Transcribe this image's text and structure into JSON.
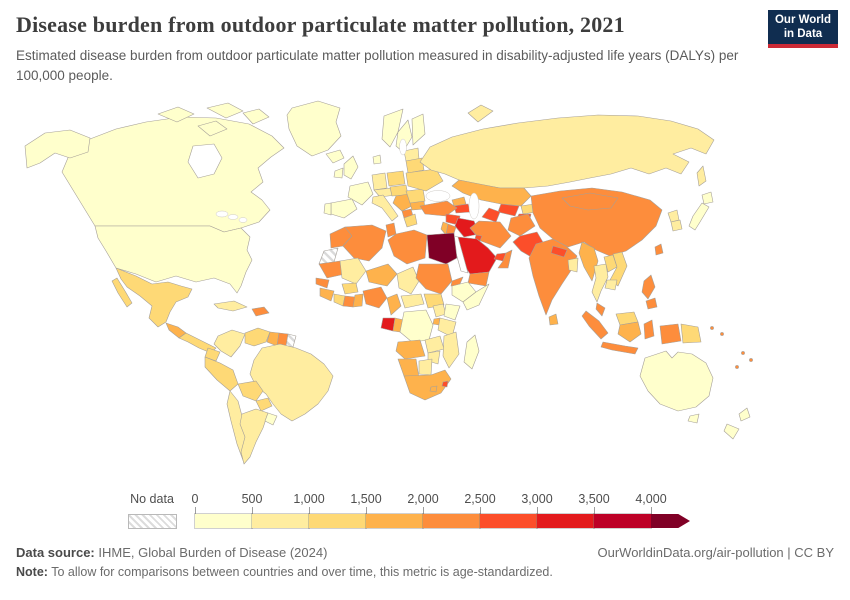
{
  "header": {
    "title": "Disease burden from outdoor particulate matter pollution, 2021",
    "subtitle": "Estimated disease burden from outdoor particulate matter pollution measured in disability-adjusted life years (DALYs) per 100,000 people.",
    "logo": {
      "line1": "Our World",
      "line2": "in Data",
      "bg_color": "#102d50",
      "accent_color": "#cc2a36"
    }
  },
  "legend": {
    "no_data_label": "No data",
    "tick_labels": [
      "0",
      "500",
      "1,000",
      "1,500",
      "2,000",
      "2,500",
      "3,000",
      "3,500",
      "4,000"
    ]
  },
  "footer": {
    "data_source_label": "Data source:",
    "data_source_value": " IHME, Global Burden of Disease (2024)",
    "citation": "OurWorldinData.org/air-pollution | CC BY",
    "note_label": "Note:",
    "note_value": " To allow for comparisons between countries and over time, this metric is age-standardized."
  },
  "chart_data": {
    "type": "choropleth",
    "title": "Disease burden from outdoor particulate matter pollution",
    "year": "2021",
    "unit": "DALYs per 100,000 people (age-standardized)",
    "bins": [
      {
        "range": "0-500",
        "color": "#ffffcc"
      },
      {
        "range": "500-1,000",
        "color": "#ffeda0"
      },
      {
        "range": "1,000-1,500",
        "color": "#fed976"
      },
      {
        "range": "1,500-2,000",
        "color": "#feb24c"
      },
      {
        "range": "2,000-2,500",
        "color": "#fd8d3c"
      },
      {
        "range": "2,500-3,000",
        "color": "#fc4e2a"
      },
      {
        "range": "3,000-3,500",
        "color": "#e31a1c"
      },
      {
        "range": "3,500-4,000",
        "color": "#bd0026"
      },
      {
        "range": "4,000+",
        "color": "#800026"
      }
    ],
    "no_data_key": "nd",
    "countries": {
      "canada": 0,
      "usa": 0,
      "greenland": 0,
      "mexico": 2,
      "guatemala": 3,
      "central-america": 2,
      "cuba": 1,
      "hispaniola": 4,
      "colombia": 1,
      "venezuela": 2,
      "guyana": 3,
      "suriname": 4,
      "french-guiana": "nd",
      "ecuador": 2,
      "peru": 2,
      "brazil": 1,
      "bolivia": 2,
      "paraguay": 2,
      "chile": 1,
      "argentina": 1,
      "uruguay": 0,
      "iceland": 0,
      "uk": 0,
      "ireland": 0,
      "norway": 0,
      "sweden": 0,
      "finland": 0,
      "denmark": 0,
      "baltics": 1,
      "belarus": 2,
      "poland": 2,
      "germany": 1,
      "france": 0,
      "spain": 0,
      "portugal": 0,
      "switzerland-austria": 1,
      "czech-hungary": 2,
      "italy": 1,
      "balkans": 3,
      "albania-macedonia": 4,
      "greece": 2,
      "bulgaria": 3,
      "romania": 2,
      "ukraine": 2,
      "russia": 1,
      "kazakhstan": 3,
      "uzbekistan": 5,
      "turkmenistan": 5,
      "kyrgyzstan": 2,
      "tajikistan": 5,
      "georgia": 3,
      "azerbaijan-armenia": 5,
      "turkey": 4,
      "syria": 5,
      "iraq": 6,
      "iran": 4,
      "afghanistan": 4,
      "pakistan": 5,
      "israel-lebanon": 3,
      "jordan": 4,
      "kuwait": 5,
      "saudi-arabia": 6,
      "qatar-uae": 5,
      "oman": 4,
      "yemen": 4,
      "india": 4,
      "nepal": 5,
      "bangladesh": 1,
      "sri-lanka": 3,
      "china": 4,
      "mongolia": 4,
      "taiwan": 4,
      "north-korea": 1,
      "south-korea": 1,
      "japan": 0,
      "myanmar": 3,
      "thailand": 1,
      "laos": 2,
      "vietnam": 2,
      "cambodia": 1,
      "malaysia-peninsula": 4,
      "sumatra": 4,
      "java": 4,
      "borneo-malaysia": 2,
      "borneo-indonesia": 3,
      "sulawesi": 4,
      "papua-indonesia": 4,
      "papua-new-guinea": 2,
      "philippines": 4,
      "pacific-islands": 4,
      "australia": 0,
      "new-zealand": 0,
      "morocco": 4,
      "western-sahara": "nd",
      "algeria": 4,
      "tunisia": 4,
      "libya": 4,
      "egypt": 8,
      "mauritania": 4,
      "mali": 1,
      "niger": 3,
      "chad": 1,
      "sudan": 4,
      "eritrea": 4,
      "senegal": 4,
      "guinea": 3,
      "ivory-coast": 2,
      "ghana": 4,
      "togo-benin": 3,
      "burkina-faso": 2,
      "nigeria": 4,
      "cameroon": 3,
      "car": 1,
      "south-sudan": 2,
      "ethiopia": 0,
      "somalia": 0,
      "gabon": 6,
      "congo": 3,
      "drc": 0,
      "uganda": 1,
      "kenya": 0,
      "rwanda-burundi": 3,
      "tanzania": 1,
      "angola": 3,
      "zambia": 1,
      "mozambique": 1,
      "zimbabwe": 1,
      "namibia": 3,
      "botswana": 1,
      "south-africa": 3,
      "lesotho": 3,
      "eswatini": 5,
      "madagascar": 0
    }
  }
}
